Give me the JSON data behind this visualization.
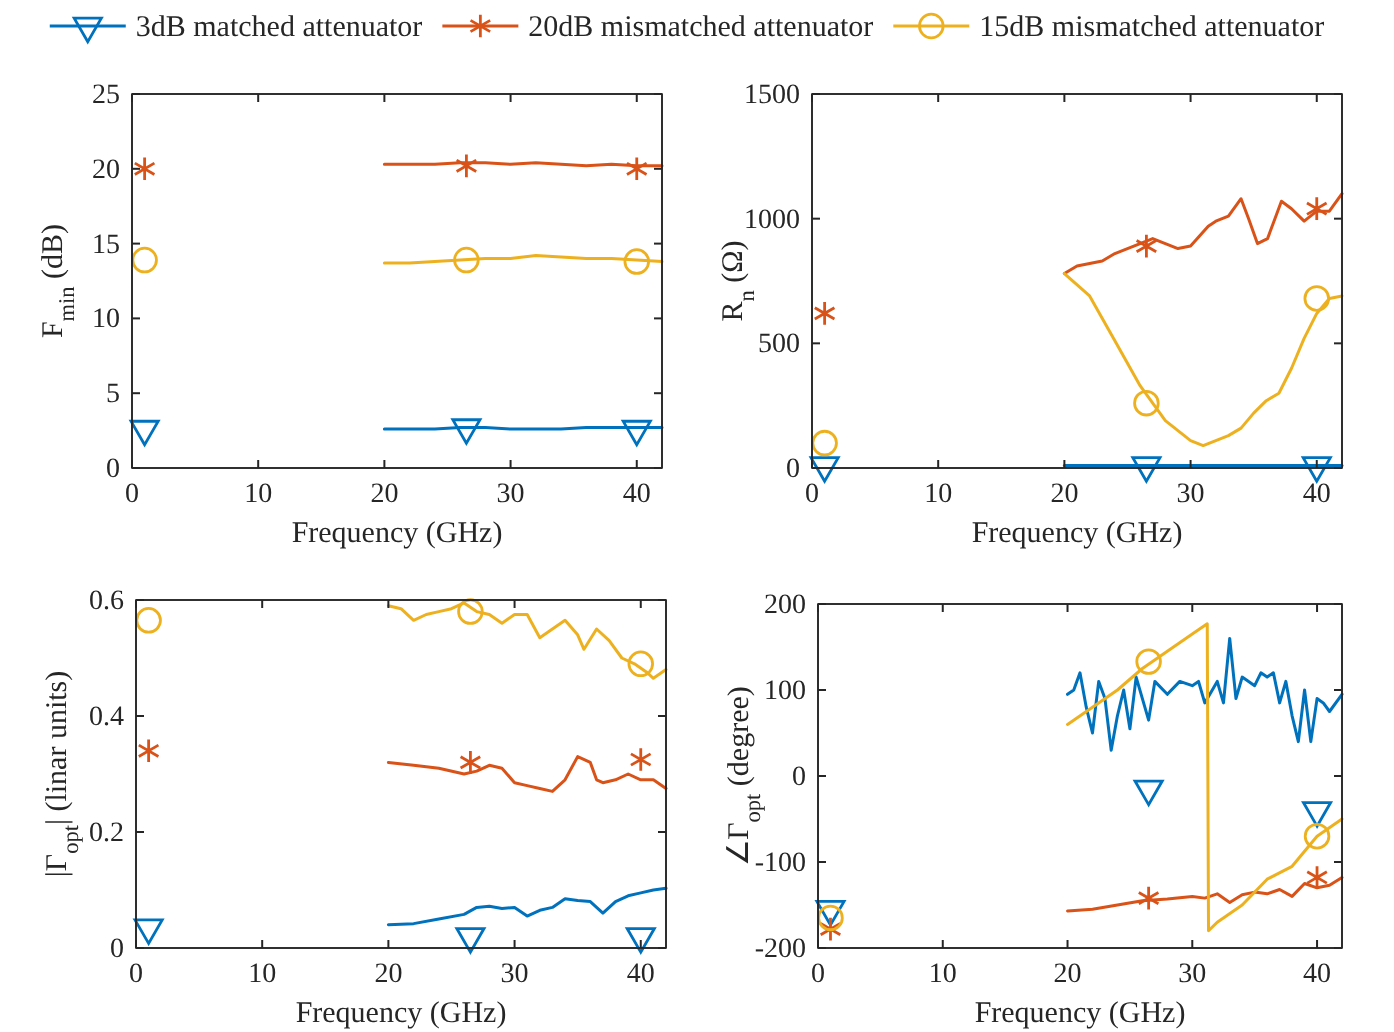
{
  "chart_data": [
    {
      "type": "line",
      "xlabel": "Frequency (GHz)",
      "ylabel": "F$_{min}$ (dB)",
      "xlim": [
        0,
        42
      ],
      "xticks": [
        0,
        10,
        20,
        30,
        40
      ],
      "ylim": [
        0,
        25
      ],
      "yticks": [
        0,
        5,
        10,
        15,
        20,
        25
      ],
      "grid": false,
      "legend": "top",
      "series": [
        {
          "name": "3dB matched attenuator",
          "color": "#0072bd",
          "x": [
            20,
            22,
            24,
            26,
            28,
            30,
            32,
            34,
            36,
            38,
            40,
            42
          ],
          "values": [
            2.6,
            2.6,
            2.6,
            2.7,
            2.7,
            2.6,
            2.6,
            2.6,
            2.7,
            2.7,
            2.7,
            2.7
          ]
        },
        {
          "name": "20dB mismatched attenuator",
          "color": "#d95319",
          "x": [
            20,
            22,
            24,
            26,
            28,
            30,
            32,
            34,
            36,
            38,
            40,
            42
          ],
          "values": [
            20.3,
            20.3,
            20.3,
            20.4,
            20.4,
            20.3,
            20.4,
            20.3,
            20.2,
            20.3,
            20.2,
            20.2
          ]
        },
        {
          "name": "15dB mismatched attenuator",
          "color": "#edb120",
          "x": [
            20,
            22,
            24,
            26,
            28,
            30,
            32,
            34,
            36,
            38,
            40,
            42
          ],
          "values": [
            13.7,
            13.7,
            13.8,
            13.9,
            14.0,
            14.0,
            14.2,
            14.1,
            14.0,
            14.0,
            13.9,
            13.8
          ]
        },
        {
          "type": "scatter",
          "color": "#0072bd",
          "marker": "triangle",
          "x": [
            1,
            26.5,
            40
          ],
          "values": [
            2.6,
            2.7,
            2.6
          ]
        },
        {
          "type": "scatter",
          "color": "#d95319",
          "marker": "cross",
          "x": [
            1,
            26.5,
            40
          ],
          "values": [
            20.0,
            20.2,
            20.0
          ]
        },
        {
          "type": "scatter",
          "color": "#edb120",
          "marker": "circle",
          "x": [
            1,
            26.5,
            40
          ],
          "values": [
            13.9,
            13.9,
            13.8
          ]
        }
      ]
    },
    {
      "type": "line",
      "xlabel": "Frequency (GHz)",
      "ylabel": "R$_{n}$ (Ω)",
      "xlim": [
        0,
        42
      ],
      "xticks": [
        0,
        10,
        20,
        30,
        40
      ],
      "ylim": [
        0,
        1500
      ],
      "yticks": [
        0,
        500,
        1000,
        1500
      ],
      "grid": false,
      "series": [
        {
          "color": "#0072bd",
          "x": [
            20,
            25,
            30,
            35,
            40,
            42
          ],
          "values": [
            10,
            10,
            10,
            10,
            10,
            10
          ]
        },
        {
          "color": "#d95319",
          "x": [
            20,
            21,
            22,
            23,
            24,
            25,
            26,
            27,
            28,
            29,
            30,
            31.4,
            32,
            33,
            34,
            34.6,
            35.3,
            36.1,
            37.2,
            38,
            39,
            40,
            41,
            42
          ],
          "values": [
            780,
            810,
            820,
            830,
            860,
            880,
            900,
            920,
            900,
            880,
            890,
            970,
            990,
            1010,
            1080,
            1000,
            900,
            920,
            1070,
            1040,
            990,
            1030,
            1030,
            1100
          ]
        },
        {
          "color": "#edb120",
          "x": [
            20,
            22,
            24,
            26,
            28,
            30,
            31,
            32,
            33,
            34,
            35,
            36,
            37,
            38,
            39,
            40,
            41,
            42
          ],
          "values": [
            780,
            690,
            510,
            330,
            190,
            110,
            90,
            110,
            130,
            160,
            220,
            270,
            300,
            400,
            520,
            620,
            680,
            690
          ]
        },
        {
          "type": "scatter",
          "color": "#0072bd",
          "marker": "triangle",
          "x": [
            1,
            26.5,
            40
          ],
          "values": [
            10,
            10,
            10
          ]
        },
        {
          "type": "scatter",
          "color": "#d95319",
          "marker": "cross",
          "x": [
            1,
            26.5,
            40
          ],
          "values": [
            620,
            890,
            1040
          ]
        },
        {
          "type": "scatter",
          "color": "#edb120",
          "marker": "circle",
          "x": [
            1,
            26.5,
            40
          ],
          "values": [
            100,
            260,
            680
          ]
        }
      ]
    },
    {
      "type": "line",
      "xlabel": "Frequency (GHz)",
      "ylabel": "|Γ$_{opt}$| (linar units)",
      "xlim": [
        0,
        42
      ],
      "xticks": [
        0,
        10,
        20,
        30,
        40
      ],
      "ylim": [
        0,
        0.6
      ],
      "yticks": [
        0,
        0.2,
        0.4,
        0.6
      ],
      "grid": false,
      "series": [
        {
          "color": "#0072bd",
          "x": [
            20,
            22,
            24,
            26,
            27,
            28,
            29,
            30,
            31,
            32,
            33,
            34,
            35,
            36,
            37,
            38,
            39,
            40,
            41,
            42
          ],
          "values": [
            0.04,
            0.042,
            0.05,
            0.058,
            0.07,
            0.072,
            0.068,
            0.07,
            0.055,
            0.065,
            0.07,
            0.085,
            0.082,
            0.08,
            0.06,
            0.08,
            0.09,
            0.095,
            0.1,
            0.103
          ]
        },
        {
          "color": "#d95319",
          "x": [
            20,
            22,
            24,
            26,
            27,
            28,
            29,
            30,
            31,
            32,
            33,
            34,
            35,
            36,
            36.5,
            37,
            38,
            39,
            40,
            41,
            42
          ],
          "values": [
            0.32,
            0.315,
            0.31,
            0.3,
            0.305,
            0.315,
            0.31,
            0.285,
            0.28,
            0.275,
            0.27,
            0.29,
            0.33,
            0.32,
            0.29,
            0.285,
            0.29,
            0.3,
            0.29,
            0.29,
            0.275
          ]
        },
        {
          "color": "#edb120",
          "x": [
            20,
            21,
            22,
            23,
            24,
            25,
            26,
            27,
            28,
            29,
            30,
            31,
            32,
            33,
            34,
            35,
            35.5,
            36.5,
            37.5,
            38.5,
            39.5,
            40.5,
            41,
            42
          ],
          "values": [
            0.59,
            0.585,
            0.565,
            0.575,
            0.58,
            0.585,
            0.595,
            0.58,
            0.575,
            0.56,
            0.575,
            0.575,
            0.535,
            0.55,
            0.565,
            0.54,
            0.515,
            0.55,
            0.53,
            0.5,
            0.49,
            0.475,
            0.465,
            0.48
          ]
        },
        {
          "type": "scatter",
          "color": "#0072bd",
          "marker": "triangle",
          "x": [
            1,
            26.5,
            40
          ],
          "values": [
            0.035,
            0.02,
            0.02
          ]
        },
        {
          "type": "scatter",
          "color": "#d95319",
          "marker": "cross",
          "x": [
            1,
            26.5,
            40
          ],
          "values": [
            0.34,
            0.32,
            0.325
          ]
        },
        {
          "type": "scatter",
          "color": "#edb120",
          "marker": "circle",
          "x": [
            1,
            26.5,
            40
          ],
          "values": [
            0.565,
            0.58,
            0.49
          ]
        }
      ]
    },
    {
      "type": "line",
      "xlabel": "Frequency (GHz)",
      "ylabel": "∠Γ$_{opt}$ (degree)",
      "xlim": [
        0,
        42
      ],
      "xticks": [
        0,
        10,
        20,
        30,
        40
      ],
      "ylim": [
        -200,
        200
      ],
      "yticks": [
        -200,
        -100,
        0,
        100,
        200
      ],
      "grid": false,
      "series": [
        {
          "color": "#0072bd",
          "x": [
            20,
            20.5,
            21,
            21.5,
            22,
            22.5,
            23,
            23.5,
            24,
            24.5,
            25,
            25.5,
            26,
            26.5,
            27,
            28,
            29,
            30,
            30.5,
            31,
            32,
            32.5,
            33,
            33.5,
            34,
            35,
            35.5,
            36,
            36.5,
            37,
            37.5,
            38,
            38.5,
            39,
            39.5,
            40,
            40.5,
            41,
            42
          ],
          "values": [
            95,
            100,
            120,
            80,
            50,
            110,
            90,
            30,
            70,
            100,
            55,
            115,
            90,
            65,
            110,
            95,
            110,
            105,
            110,
            85,
            110,
            85,
            160,
            90,
            115,
            105,
            120,
            115,
            120,
            85,
            110,
            70,
            40,
            100,
            40,
            90,
            85,
            75,
            95
          ]
        },
        {
          "color": "#d95319",
          "x": [
            20,
            22,
            24,
            26,
            28,
            30,
            31,
            32,
            33,
            34,
            35,
            36,
            37,
            38,
            39,
            40,
            41,
            42
          ],
          "values": [
            -157,
            -155,
            -150,
            -145,
            -143,
            -140,
            -142,
            -137,
            -147,
            -138,
            -135,
            -137,
            -132,
            -140,
            -125,
            -130,
            -127,
            -118
          ]
        },
        {
          "color": "#edb120",
          "x": [
            20,
            22,
            24,
            26,
            28,
            30,
            31.2,
            31.3,
            32,
            34,
            36,
            38,
            40,
            42
          ],
          "values": [
            60,
            80,
            100,
            125,
            145,
            165,
            177,
            -180,
            -170,
            -150,
            -120,
            -105,
            -70,
            -50
          ]
        },
        {
          "type": "scatter",
          "color": "#0072bd",
          "marker": "triangle",
          "x": [
            1,
            26.5,
            40
          ],
          "values": [
            -155,
            -15,
            -40
          ]
        },
        {
          "type": "scatter",
          "color": "#d95319",
          "marker": "cross",
          "x": [
            1,
            26.5,
            40
          ],
          "values": [
            -178,
            -142,
            -118
          ]
        },
        {
          "type": "scatter",
          "color": "#edb120",
          "marker": "circle",
          "x": [
            1,
            26.5,
            40
          ],
          "values": [
            -165,
            133,
            -70
          ]
        }
      ]
    }
  ]
}
